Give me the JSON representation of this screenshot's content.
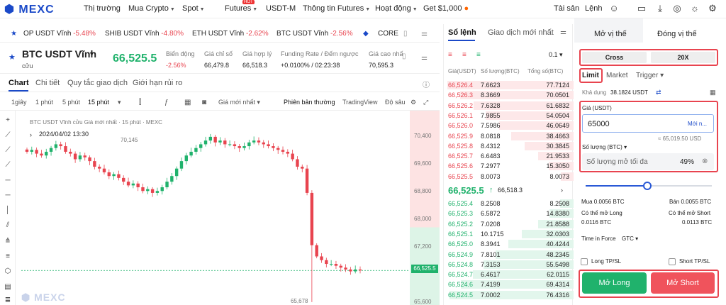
{
  "nav": {
    "logo": "MEXC",
    "items": [
      "Thị trường",
      "Mua Crypto",
      "Spot",
      "Futures",
      "USDT-M",
      "Thông tin Futures",
      "Hoạt động",
      "Get $1,000"
    ],
    "hot_badge": "HOT",
    "right": [
      "Tài sản",
      "Lệnh"
    ]
  },
  "ticker": [
    {
      "name": "OP USDT Vĩnh",
      "change": "-5.48%"
    },
    {
      "name": "SHIB USDT Vĩnh",
      "change": "-4.80%"
    },
    {
      "name": "ETH USDT Vĩnh",
      "change": "-2.62%"
    },
    {
      "name": "BTC USDT Vĩnh",
      "change": "-2.56%"
    },
    {
      "name": "CORE",
      "change": ""
    }
  ],
  "header": {
    "symbol": "BTC USDT Vĩnh",
    "symbol_sub": "cửu",
    "price": "66,525.5",
    "stats": [
      {
        "label": "Biến động",
        "value": "-2.56%"
      },
      {
        "label": "Giá chỉ số",
        "value": "66,479.8"
      },
      {
        "label": "Giá hợp lý",
        "value": "66,518.3"
      },
      {
        "label": "Funding Rate / Đếm ngược",
        "value": "+0.0100% / 02:23:38"
      },
      {
        "label": "Giá cao nhấ",
        "value": "70,595.3"
      }
    ]
  },
  "subtabs": [
    "Chart",
    "Chi tiết",
    "Quy tắc giao dịch",
    "Giới hạn rủi ro"
  ],
  "toolbar": {
    "intervals": [
      "1giây",
      "1 phút",
      "5 phút",
      "15 phút"
    ],
    "price_type": "Giá mới nhất",
    "views": [
      "Phiên bản thường",
      "TradingView",
      "Độ sâu"
    ]
  },
  "chart": {
    "caption": "BTC USDT Vĩnh cửu Giá mới nhất · 15 phút · MEXC",
    "date": "2024/04/02 13:30",
    "high_label": "70,145",
    "low_label": "65,678",
    "current_label": "66,525.5",
    "watermark": "MEXC",
    "axis": [
      "70,400",
      "69,600",
      "68,800",
      "68,000",
      "67,200",
      "66,400",
      "65,600"
    ]
  },
  "chart_data": {
    "type": "candlestick",
    "x": [
      "2024/04/02 13:30"
    ],
    "ylim": [
      65600,
      70800
    ],
    "close": [
      69700,
      69750,
      69650,
      69600,
      69700,
      69800,
      69900,
      69850,
      69700,
      69650,
      69500,
      69600,
      69550,
      69450,
      69300,
      69250,
      69150,
      69050,
      69100,
      69000,
      68900,
      68800,
      68850,
      68750,
      68650,
      68700,
      68600,
      68650,
      68750,
      68900,
      69050,
      69250,
      69450,
      69600,
      69700,
      69800,
      69900,
      70000,
      70100,
      69950,
      70000,
      69900,
      69900,
      69850,
      69800,
      69850,
      69950,
      70000,
      69950,
      69900,
      69850,
      69800,
      69750,
      69700,
      69650,
      69500,
      69300,
      69250,
      68600,
      67200,
      66900,
      66800,
      66700,
      66700,
      66650,
      66600,
      66550,
      66500,
      66550,
      66525
    ]
  },
  "orderbook": {
    "tabs": [
      "Sổ lệnh",
      "Giao dịch mới nhất"
    ],
    "step": "0.1",
    "headers": [
      "Giá(USDT)",
      "Số lượng(BTC)",
      "Tổng số(BTC)"
    ],
    "asks": [
      [
        "66,526.4",
        "7.6623",
        "77.7124"
      ],
      [
        "66,526.3",
        "8.3669",
        "70.0501"
      ],
      [
        "66,526.2",
        "7.6328",
        "61.6832"
      ],
      [
        "66,526.1",
        "7.9855",
        "54.0504"
      ],
      [
        "66,526.0",
        "7.5986",
        "46.0649"
      ],
      [
        "66,525.9",
        "8.0818",
        "38.4663"
      ],
      [
        "66,525.8",
        "8.4312",
        "30.3845"
      ],
      [
        "66,525.7",
        "6.6483",
        "21.9533"
      ],
      [
        "66,525.6",
        "7.2977",
        "15.3050"
      ],
      [
        "66,525.5",
        "8.0073",
        "8.0073"
      ]
    ],
    "last_price": "66,525.5",
    "mark_price": "66,518.3",
    "bids": [
      [
        "66,525.4",
        "8.2508",
        "8.2508"
      ],
      [
        "66,525.3",
        "6.5872",
        "14.8380"
      ],
      [
        "66,525.2",
        "7.0208",
        "21.8588"
      ],
      [
        "66,525.1",
        "10.1715",
        "32.0303"
      ],
      [
        "66,525.0",
        "8.3941",
        "40.4244"
      ],
      [
        "66,524.9",
        "7.8101",
        "48.2345"
      ],
      [
        "66,524.8",
        "7.3153",
        "55.5498"
      ],
      [
        "66,524.7",
        "6.4617",
        "62.0115"
      ],
      [
        "66,524.6",
        "7.4199",
        "69.4314"
      ],
      [
        "66,524.5",
        "7.0002",
        "76.4316"
      ]
    ]
  },
  "panel": {
    "tabs": [
      "Mở vị thế",
      "Đóng vị thế"
    ],
    "margin_mode": "Cross",
    "leverage": "20X",
    "order_types": [
      "Limit",
      "Market",
      "Trigger"
    ],
    "available_label": "Khả dụng",
    "available_value": "38.1824 USDT",
    "price_label": "Giá (USDT)",
    "price_value": "65000",
    "price_hint": "Mới n...",
    "price_equiv": "≈ 65,019.50 USD",
    "qty_label": "Số lượng (BTC)",
    "qty_placeholder": "Số lượng mở tối đa",
    "qty_percent": "49%",
    "slider_fraction": 0.49,
    "buy_label": "Mua 0.0056 BTC",
    "sell_label": "Bán 0.0055 BTC",
    "can_long_label": "Có thể mở Long",
    "can_long_value": "0.0116 BTC",
    "can_short_label": "Có thể mở Short",
    "can_short_value": "0.0113 BTC",
    "tif_label": "Time in Force",
    "tif_value": "GTC",
    "long_tpsl": "Long TP/SL",
    "short_tpsl": "Short TP/SL",
    "long_button": "Mở Long",
    "short_button": "Mở Short"
  }
}
